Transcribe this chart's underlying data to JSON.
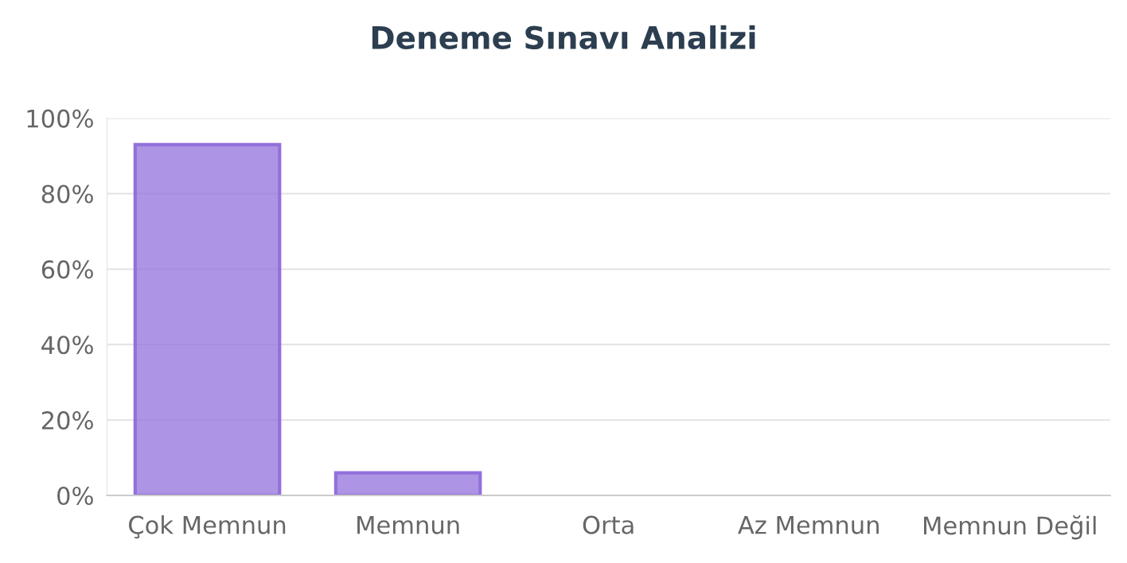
{
  "chart_data": {
    "type": "bar",
    "title": "Deneme Sınavı Analizi",
    "categories": [
      "Çok Memnun",
      "Memnun",
      "Orta",
      "Az Memnun",
      "Memnun Değil"
    ],
    "values": [
      93,
      6,
      0,
      0,
      0
    ],
    "color": "#9370db",
    "ylim": [
      0,
      100
    ],
    "yticks": [
      {
        "value": 0,
        "label": "0%"
      },
      {
        "value": 20,
        "label": "20%"
      },
      {
        "value": 40,
        "label": "40%"
      },
      {
        "value": 60,
        "label": "60%"
      },
      {
        "value": 80,
        "label": "80%"
      },
      {
        "value": 100,
        "label": "100%"
      }
    ],
    "grid": "y"
  }
}
